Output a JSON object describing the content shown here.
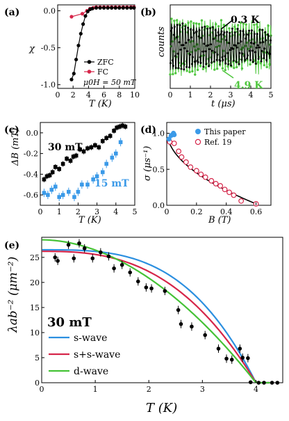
{
  "chart_data": [
    {
      "panel": "(a)",
      "type": "line",
      "xlabel": "T (K)",
      "ylabel": "χ",
      "xlim": [
        0,
        10
      ],
      "ylim": [
        -1.05,
        0.08
      ],
      "xticks": [
        "0",
        "2",
        "4",
        "6",
        "8",
        "10"
      ],
      "yticks": [
        "0.0",
        "-0.5",
        "-1.0"
      ],
      "annotation": "μ0H = 50 mT",
      "series": [
        {
          "name": "ZFC",
          "color": "#000000",
          "x": [
            1.8,
            2.1,
            2.4,
            2.7,
            3.0,
            3.3,
            3.6,
            3.9,
            4.2,
            4.5,
            5.0,
            5.5,
            6.0,
            6.5,
            7.0,
            7.5,
            8.0,
            8.5,
            9.0,
            9.5,
            9.9
          ],
          "y": [
            -0.93,
            -0.85,
            -0.66,
            -0.47,
            -0.31,
            -0.18,
            -0.07,
            -0.01,
            0.02,
            0.03,
            0.04,
            0.04,
            0.04,
            0.04,
            0.04,
            0.04,
            0.04,
            0.04,
            0.04,
            0.04,
            0.04
          ]
        },
        {
          "name": "FC",
          "color": "#d6264a",
          "x": [
            1.8,
            3.2,
            3.8,
            4.2,
            4.6,
            5.0,
            5.5,
            6.0,
            6.5,
            7.0,
            7.5,
            8.0,
            8.5,
            9.0,
            9.5,
            9.9
          ],
          "y": [
            -0.08,
            -0.04,
            0.0,
            0.03,
            0.04,
            0.05,
            0.05,
            0.05,
            0.05,
            0.05,
            0.05,
            0.05,
            0.05,
            0.05,
            0.05,
            0.05
          ]
        }
      ]
    },
    {
      "panel": "(b)",
      "type": "line",
      "xlabel": "t (μs)",
      "ylabel": "counts",
      "xlim": [
        0,
        5
      ],
      "xticks": [
        "0",
        "1",
        "2",
        "3",
        "4",
        "5"
      ],
      "series": [
        {
          "name": "0.3 K",
          "color": "#000000",
          "frequency_per_us": 7.3
        },
        {
          "name": "4.9 K",
          "color": "#4fc63e",
          "frequency_per_us": 7.3
        }
      ]
    },
    {
      "panel": "(c)",
      "type": "scatter",
      "xlabel": "T (K)",
      "ylabel": "ΔB (mT)",
      "xlim": [
        0,
        5
      ],
      "ylim": [
        -0.7,
        0.1
      ],
      "xticks": [
        "0",
        "1",
        "2",
        "3",
        "4",
        "5"
      ],
      "yticks": [
        "0.0",
        "-0.2",
        "-0.4",
        "-0.6"
      ],
      "series": [
        {
          "name": "30 mT",
          "color": "#000000",
          "x": [
            0.2,
            0.35,
            0.5,
            0.65,
            0.8,
            1.0,
            1.2,
            1.4,
            1.6,
            1.75,
            1.9,
            2.1,
            2.3,
            2.5,
            2.7,
            2.9,
            3.1,
            3.3,
            3.5,
            3.7,
            3.9,
            4.05,
            4.2,
            4.35,
            4.5
          ],
          "y": [
            -0.45,
            -0.42,
            -0.41,
            -0.38,
            -0.33,
            -0.35,
            -0.3,
            -0.25,
            -0.27,
            -0.23,
            -0.22,
            -0.16,
            -0.18,
            -0.15,
            -0.14,
            -0.12,
            -0.14,
            -0.08,
            -0.05,
            -0.03,
            0.02,
            0.05,
            0.06,
            0.07,
            0.06
          ]
        },
        {
          "name": "15 mT",
          "color": "#3b9ae8",
          "x": [
            0.2,
            0.4,
            0.6,
            0.8,
            1.0,
            1.2,
            1.5,
            1.8,
            2.0,
            2.2,
            2.5,
            2.8,
            3.0,
            3.3,
            3.5,
            3.8,
            4.0,
            4.25
          ],
          "y": [
            -0.58,
            -0.6,
            -0.55,
            -0.52,
            -0.62,
            -0.6,
            -0.57,
            -0.62,
            -0.57,
            -0.5,
            -0.5,
            -0.45,
            -0.42,
            -0.38,
            -0.3,
            -0.24,
            -0.2,
            -0.09
          ]
        }
      ]
    },
    {
      "panel": "(d)",
      "type": "scatter",
      "xlabel": "B (T)",
      "ylabel": "σ (μs⁻¹)",
      "xlim": [
        0,
        0.7
      ],
      "ylim": [
        0,
        1.15
      ],
      "xticks": [
        "0",
        "0.2",
        "0.4",
        "0.6"
      ],
      "yticks": [
        "0.0",
        "0.5",
        "1.0"
      ],
      "series": [
        {
          "name": "This paper",
          "color": "#3b9ae8",
          "x": [
            0.015,
            0.03,
            0.045,
            0.05
          ],
          "y": [
            0.92,
            0.97,
            1.0,
            0.98
          ]
        },
        {
          "name": "Ref. 19",
          "color": "#d6264a",
          "x": [
            0.02,
            0.05,
            0.08,
            0.1,
            0.13,
            0.16,
            0.2,
            0.23,
            0.26,
            0.3,
            0.33,
            0.36,
            0.39,
            0.42,
            0.45,
            0.5,
            0.6
          ],
          "y": [
            0.88,
            0.86,
            0.75,
            0.67,
            0.6,
            0.53,
            0.48,
            0.43,
            0.39,
            0.34,
            0.3,
            0.27,
            0.22,
            0.18,
            0.14,
            0.06,
            0.02
          ]
        }
      ]
    },
    {
      "panel": "(e)",
      "type": "line",
      "xlabel": "T (K)",
      "ylabel": "λab⁻² (μm⁻²)",
      "xlim": [
        0,
        4.5
      ],
      "ylim": [
        0,
        29
      ],
      "xticks": [
        "0",
        "1",
        "2",
        "3",
        "4"
      ],
      "yticks": [
        "0",
        "5",
        "10",
        "15",
        "20",
        "25"
      ],
      "annotation": "30 mT",
      "series": [
        {
          "name": "data",
          "color": "#000000",
          "x": [
            0.25,
            0.3,
            0.5,
            0.6,
            0.7,
            0.8,
            0.95,
            1.1,
            1.25,
            1.35,
            1.5,
            1.65,
            1.8,
            1.95,
            2.05,
            2.3,
            2.55,
            2.6,
            2.8,
            3.05,
            3.3,
            3.45,
            3.55,
            3.7,
            3.75,
            3.85,
            3.9,
            4.05,
            4.15,
            4.3,
            4.4
          ],
          "y": [
            25.0,
            24.3,
            27.5,
            24.8,
            27.8,
            26.8,
            24.8,
            26.0,
            25.2,
            22.8,
            23.5,
            22.0,
            20.2,
            19.0,
            18.8,
            18.3,
            14.5,
            11.7,
            11.2,
            9.5,
            6.8,
            4.8,
            4.6,
            6.8,
            5.0,
            4.9,
            0.1,
            0.0,
            0.0,
            0.0,
            0.0
          ]
        },
        {
          "name": "s-wave",
          "color": "#2b8fe0"
        },
        {
          "name": "s+s-wave",
          "color": "#d6264a"
        },
        {
          "name": "d-wave",
          "color": "#45c236"
        }
      ]
    }
  ]
}
